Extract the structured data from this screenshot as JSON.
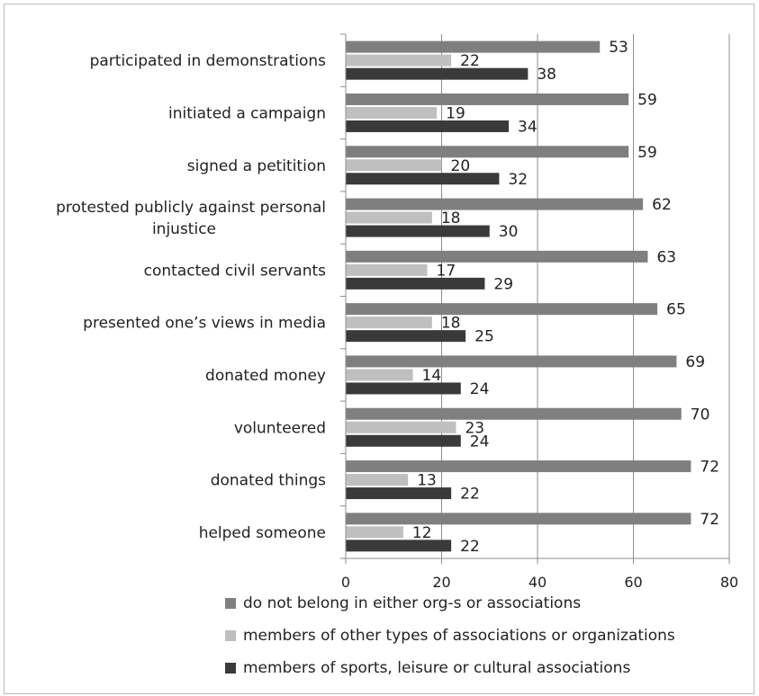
{
  "chart_data": {
    "type": "bar",
    "orientation": "horizontal",
    "categories": [
      "participated in demonstrations",
      "initiated a campaign",
      "signed a petitition",
      "protested publicly against personal injustice",
      "contacted civil servants",
      "presented one’s views in media",
      "donated money",
      "volunteered",
      "donated things",
      "helped someone"
    ],
    "category_lines": [
      [
        "participated in demonstrations"
      ],
      [
        "initiated a campaign"
      ],
      [
        "signed a petitition"
      ],
      [
        "protested publicly against personal",
        "injustice"
      ],
      [
        "contacted civil servants"
      ],
      [
        "presented one’s views in media"
      ],
      [
        "donated money"
      ],
      [
        "volunteered"
      ],
      [
        "donated things"
      ],
      [
        "helped someone"
      ]
    ],
    "series": [
      {
        "name": "do not belong in either org-s or associations",
        "color": "#7f7f7f",
        "values": [
          53,
          59,
          59,
          62,
          63,
          65,
          69,
          70,
          72,
          72
        ]
      },
      {
        "name": "members of other types of associations or organizations",
        "color": "#bfbfbf",
        "values": [
          22,
          19,
          20,
          18,
          17,
          18,
          14,
          23,
          13,
          12
        ]
      },
      {
        "name": "members of sports, leisure or cultural associations",
        "color": "#3a3a3a",
        "values": [
          38,
          34,
          32,
          30,
          29,
          25,
          24,
          24,
          22,
          22
        ]
      }
    ],
    "xlim": [
      0,
      80
    ],
    "xticks": [
      0,
      20,
      40,
      60,
      80
    ],
    "grid": true,
    "legend_position": "bottom"
  }
}
